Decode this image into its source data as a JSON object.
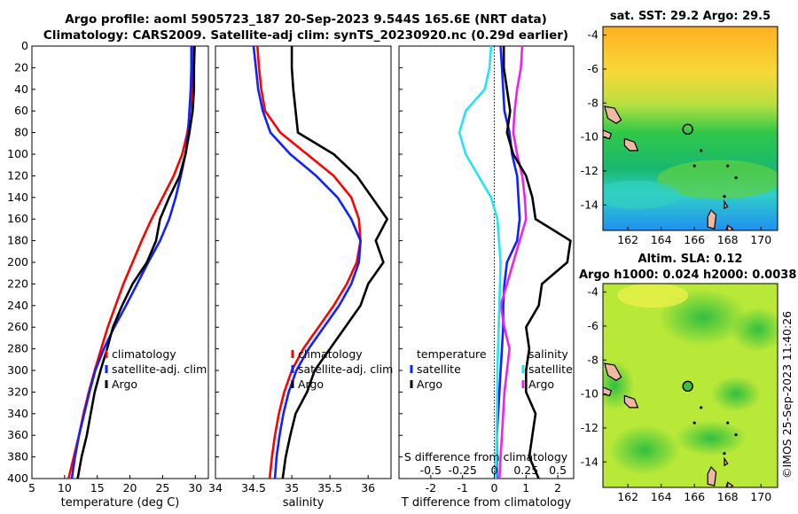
{
  "titles": {
    "line1": "Argo profile: aoml 5905723_187 20-Sep-2023 9.544S 165.6E (NRT data)",
    "line2": "Climatology: CARS2009. Satellite-adj clim: synTS_20230920.nc (0.29d earlier)"
  },
  "colors": {
    "climatology": "#ff0000",
    "satellite": "#1020ff",
    "argo": "#000000",
    "temp_diff": "#22e5f0",
    "sal_diff": "#ee22ee"
  },
  "credit": "©IMOS 25-Sep-2023 11:40:26",
  "chart_data": [
    {
      "type": "line",
      "id": "temperature",
      "xlabel": "temperature (deg C)",
      "ylabel": "",
      "xlim": [
        5,
        32
      ],
      "ylim": [
        0,
        400
      ],
      "xticks": [
        "5",
        "10",
        "15",
        "20",
        "25",
        "30"
      ],
      "yticks": [
        "0",
        "20",
        "40",
        "60",
        "80",
        "100",
        "120",
        "140",
        "160",
        "180",
        "200",
        "220",
        "240",
        "260",
        "280",
        "300",
        "320",
        "340",
        "360",
        "380",
        "400"
      ],
      "legend": [
        "climatology",
        "satellite-adj. clim",
        "Argo"
      ],
      "series": [
        {
          "name": "climatology",
          "color": "#ff0000",
          "points": [
            [
              29.6,
              0
            ],
            [
              29.6,
              20
            ],
            [
              29.5,
              40
            ],
            [
              29.2,
              60
            ],
            [
              28.8,
              80
            ],
            [
              28.0,
              100
            ],
            [
              26.7,
              120
            ],
            [
              25.0,
              140
            ],
            [
              23.3,
              160
            ],
            [
              21.8,
              180
            ],
            [
              20.4,
              200
            ],
            [
              19.0,
              220
            ],
            [
              17.8,
              240
            ],
            [
              16.6,
              260
            ],
            [
              15.6,
              280
            ],
            [
              14.6,
              300
            ],
            [
              13.7,
              320
            ],
            [
              12.9,
              340
            ],
            [
              12.2,
              360
            ],
            [
              11.4,
              380
            ],
            [
              10.6,
              400
            ]
          ]
        },
        {
          "name": "satellite-adj. clim",
          "color": "#1020ff",
          "points": [
            [
              29.4,
              0
            ],
            [
              29.4,
              20
            ],
            [
              29.3,
              40
            ],
            [
              29.1,
              60
            ],
            [
              28.9,
              80
            ],
            [
              28.5,
              100
            ],
            [
              27.8,
              120
            ],
            [
              27.0,
              140
            ],
            [
              26.0,
              160
            ],
            [
              24.6,
              180
            ],
            [
              22.8,
              200
            ],
            [
              21.1,
              220
            ],
            [
              19.4,
              240
            ],
            [
              17.6,
              260
            ],
            [
              16.0,
              280
            ],
            [
              14.7,
              300
            ],
            [
              13.8,
              320
            ],
            [
              13.0,
              340
            ],
            [
              12.2,
              360
            ],
            [
              11.6,
              380
            ],
            [
              11.1,
              400
            ]
          ]
        },
        {
          "name": "Argo",
          "color": "#000000",
          "points": [
            [
              29.9,
              0
            ],
            [
              29.8,
              20
            ],
            [
              29.8,
              40
            ],
            [
              29.6,
              60
            ],
            [
              29.1,
              80
            ],
            [
              28.5,
              100
            ],
            [
              27.6,
              120
            ],
            [
              26.0,
              140
            ],
            [
              24.6,
              160
            ],
            [
              24.0,
              180
            ],
            [
              22.6,
              200
            ],
            [
              20.4,
              220
            ],
            [
              18.8,
              240
            ],
            [
              17.4,
              260
            ],
            [
              16.5,
              280
            ],
            [
              15.5,
              300
            ],
            [
              14.6,
              320
            ],
            [
              14.0,
              340
            ],
            [
              13.4,
              360
            ],
            [
              12.6,
              380
            ],
            [
              12.0,
              400
            ]
          ]
        }
      ]
    },
    {
      "type": "line",
      "id": "salinity",
      "xlabel": "salinity",
      "xlim": [
        34,
        36.3
      ],
      "ylim": [
        0,
        400
      ],
      "xticks": [
        "34",
        "34.5",
        "35",
        "35.5",
        "36"
      ],
      "legend": [
        "climatology",
        "satellite-adj. clim",
        "Argo"
      ],
      "series": [
        {
          "name": "climatology",
          "color": "#ff0000",
          "points": [
            [
              34.55,
              0
            ],
            [
              34.57,
              20
            ],
            [
              34.6,
              40
            ],
            [
              34.65,
              60
            ],
            [
              34.85,
              80
            ],
            [
              35.2,
              100
            ],
            [
              35.55,
              120
            ],
            [
              35.78,
              140
            ],
            [
              35.88,
              160
            ],
            [
              35.9,
              180
            ],
            [
              35.85,
              200
            ],
            [
              35.72,
              220
            ],
            [
              35.55,
              240
            ],
            [
              35.35,
              260
            ],
            [
              35.15,
              280
            ],
            [
              35.0,
              300
            ],
            [
              34.9,
              320
            ],
            [
              34.83,
              340
            ],
            [
              34.78,
              360
            ],
            [
              34.74,
              380
            ],
            [
              34.71,
              400
            ]
          ]
        },
        {
          "name": "satellite-adj. clim",
          "color": "#1020ff",
          "points": [
            [
              34.5,
              0
            ],
            [
              34.53,
              20
            ],
            [
              34.56,
              40
            ],
            [
              34.62,
              60
            ],
            [
              34.72,
              80
            ],
            [
              34.98,
              100
            ],
            [
              35.32,
              120
            ],
            [
              35.6,
              140
            ],
            [
              35.78,
              160
            ],
            [
              35.9,
              180
            ],
            [
              35.88,
              200
            ],
            [
              35.78,
              220
            ],
            [
              35.62,
              240
            ],
            [
              35.42,
              260
            ],
            [
              35.22,
              280
            ],
            [
              35.06,
              300
            ],
            [
              34.96,
              320
            ],
            [
              34.89,
              340
            ],
            [
              34.84,
              360
            ],
            [
              34.8,
              380
            ],
            [
              34.78,
              400
            ]
          ]
        },
        {
          "name": "Argo",
          "color": "#000000",
          "points": [
            [
              35.0,
              0
            ],
            [
              35.0,
              20
            ],
            [
              35.02,
              40
            ],
            [
              35.05,
              60
            ],
            [
              35.08,
              80
            ],
            [
              35.55,
              100
            ],
            [
              35.85,
              120
            ],
            [
              36.05,
              140
            ],
            [
              36.25,
              160
            ],
            [
              36.1,
              180
            ],
            [
              36.2,
              200
            ],
            [
              36.0,
              220
            ],
            [
              35.9,
              240
            ],
            [
              35.7,
              260
            ],
            [
              35.5,
              280
            ],
            [
              35.3,
              300
            ],
            [
              35.2,
              320
            ],
            [
              35.05,
              340
            ],
            [
              34.98,
              360
            ],
            [
              34.92,
              380
            ],
            [
              34.88,
              400
            ]
          ]
        }
      ]
    },
    {
      "type": "line",
      "id": "difference",
      "xlabel": "T difference from climatology",
      "xlabel_top": "S difference from climatology",
      "xlim": [
        -3,
        2.5
      ],
      "xlim_top": [
        -0.75,
        0.625
      ],
      "ylim": [
        0,
        400
      ],
      "xticks": [
        "-2",
        "-1",
        "0",
        "1",
        "2"
      ],
      "xticks_top": [
        "-0.5",
        "-0.25",
        "0",
        "0.25",
        "0.5"
      ],
      "legend_temp": [
        "temperature",
        "satellite",
        "Argo"
      ],
      "legend_sal": [
        "salinity",
        "satellite",
        "Argo"
      ],
      "temperature_series": [
        {
          "name": "satellite",
          "color": "#22e5f0",
          "points": [
            [
              -0.1,
              0
            ],
            [
              -0.15,
              20
            ],
            [
              -0.3,
              40
            ],
            [
              -0.9,
              60
            ],
            [
              -1.1,
              80
            ],
            [
              -0.9,
              100
            ],
            [
              -0.5,
              120
            ],
            [
              -0.1,
              140
            ],
            [
              0.1,
              160
            ],
            [
              0.2,
              200
            ],
            [
              0.15,
              250
            ],
            [
              0.1,
              300
            ],
            [
              0.08,
              350
            ],
            [
              0.05,
              400
            ]
          ]
        },
        {
          "name": "Argo",
          "color": "#000000",
          "points": [
            [
              0.3,
              0
            ],
            [
              0.3,
              20
            ],
            [
              0.4,
              40
            ],
            [
              0.5,
              60
            ],
            [
              0.4,
              80
            ],
            [
              0.6,
              100
            ],
            [
              1.0,
              120
            ],
            [
              1.2,
              140
            ],
            [
              1.3,
              160
            ],
            [
              2.4,
              180
            ],
            [
              2.3,
              200
            ],
            [
              1.5,
              220
            ],
            [
              1.4,
              240
            ],
            [
              1.0,
              260
            ],
            [
              1.1,
              280
            ],
            [
              1.0,
              300
            ],
            [
              1.0,
              320
            ],
            [
              1.3,
              340
            ],
            [
              1.2,
              360
            ],
            [
              1.1,
              380
            ],
            [
              1.4,
              400
            ]
          ]
        }
      ],
      "salinity_series": [
        {
          "name": "satellite",
          "color": "#1020ff",
          "points": [
            [
              0.05,
              0
            ],
            [
              0.06,
              20
            ],
            [
              0.07,
              40
            ],
            [
              0.08,
              60
            ],
            [
              0.12,
              80
            ],
            [
              0.14,
              100
            ],
            [
              0.18,
              120
            ],
            [
              0.19,
              140
            ],
            [
              0.2,
              160
            ],
            [
              0.18,
              180
            ],
            [
              0.1,
              200
            ],
            [
              0.08,
              220
            ],
            [
              0.07,
              240
            ],
            [
              0.07,
              260
            ],
            [
              0.06,
              280
            ],
            [
              0.05,
              300
            ],
            [
              0.04,
              320
            ],
            [
              0.03,
              340
            ],
            [
              0.02,
              360
            ],
            [
              0.02,
              380
            ],
            [
              0.02,
              400
            ]
          ]
        },
        {
          "name": "Argo",
          "color": "#ee22ee",
          "points": [
            [
              0.22,
              0
            ],
            [
              0.21,
              20
            ],
            [
              0.18,
              40
            ],
            [
              0.16,
              60
            ],
            [
              0.15,
              80
            ],
            [
              0.18,
              100
            ],
            [
              0.22,
              120
            ],
            [
              0.24,
              140
            ],
            [
              0.25,
              160
            ],
            [
              0.2,
              180
            ],
            [
              0.15,
              200
            ],
            [
              0.1,
              220
            ],
            [
              0.05,
              240
            ],
            [
              0.08,
              260
            ],
            [
              0.12,
              280
            ],
            [
              0.1,
              300
            ],
            [
              0.08,
              320
            ],
            [
              0.07,
              340
            ],
            [
              0.06,
              360
            ],
            [
              0.05,
              380
            ],
            [
              0.04,
              400
            ]
          ]
        }
      ]
    },
    {
      "type": "heatmap",
      "id": "sst_map",
      "title": "sat. SST: 29.2 Argo: 29.5",
      "xlim": [
        160.5,
        171
      ],
      "ylim": [
        -15.5,
        -3.5
      ],
      "xticks": [
        "162",
        "164",
        "166",
        "168",
        "170"
      ],
      "yticks": [
        "-4",
        "-6",
        "-8",
        "-10",
        "-12",
        "-14"
      ],
      "marker": {
        "lon": 165.6,
        "lat": -9.544
      }
    },
    {
      "type": "heatmap",
      "id": "sla_map",
      "title": "Altim. SLA: 0.12",
      "subtitle": "Argo h1000: 0.024 h2000: 0.0038",
      "xlim": [
        160.5,
        171
      ],
      "ylim": [
        -15.5,
        -3.5
      ],
      "xticks": [
        "162",
        "164",
        "166",
        "168",
        "170"
      ],
      "yticks": [
        "-4",
        "-6",
        "-8",
        "-10",
        "-12",
        "-14"
      ],
      "marker": {
        "lon": 165.6,
        "lat": -9.544
      }
    }
  ]
}
